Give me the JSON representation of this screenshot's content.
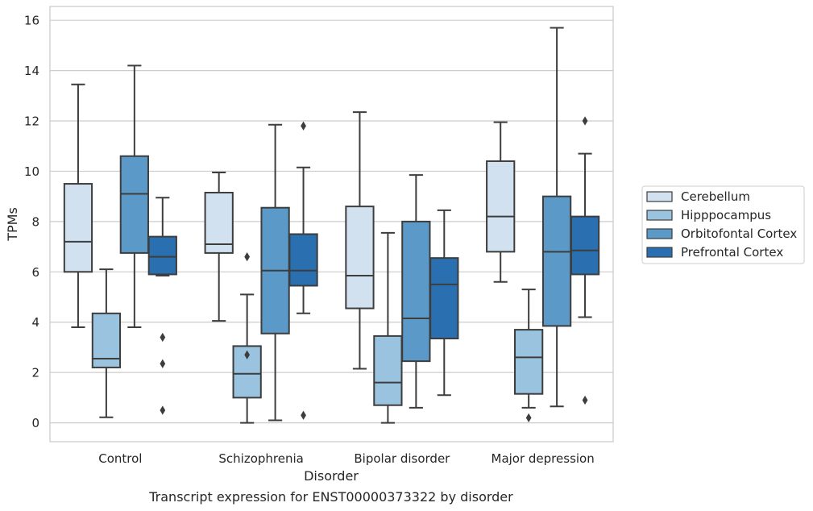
{
  "chart_data": {
    "type": "box",
    "title": "Transcript expression for ENST00000373322 by disorder",
    "xlabel": "Disorder",
    "ylabel": "TPMs",
    "ylim": [
      -0.75,
      16.55
    ],
    "yticks": [
      0,
      2,
      4,
      6,
      8,
      10,
      12,
      14,
      16
    ],
    "grid": "horizontal",
    "legend_position": "right",
    "categories": [
      "Control",
      "Schizophrenia",
      "Bipolar disorder",
      "Major depression"
    ],
    "series": [
      {
        "name": "Cerebellum",
        "color": "#d2e1f0",
        "boxes": [
          {
            "whislo": 3.8,
            "q1": 6.0,
            "median": 7.2,
            "q3": 9.5,
            "whishi": 13.45,
            "fliers": []
          },
          {
            "whislo": 4.05,
            "q1": 6.75,
            "median": 7.1,
            "q3": 9.15,
            "whishi": 9.95,
            "fliers": []
          },
          {
            "whislo": 2.15,
            "q1": 4.55,
            "median": 5.85,
            "q3": 8.6,
            "whishi": 12.35,
            "fliers": []
          },
          {
            "whislo": 5.6,
            "q1": 6.8,
            "median": 8.2,
            "q3": 10.4,
            "whishi": 11.95,
            "fliers": []
          }
        ]
      },
      {
        "name": "Hipppocampus",
        "color": "#9ac3df",
        "boxes": [
          {
            "whislo": 0.22,
            "q1": 2.2,
            "median": 2.55,
            "q3": 4.35,
            "whishi": 6.1,
            "fliers": []
          },
          {
            "whislo": 0.0,
            "q1": 1.0,
            "median": 1.95,
            "q3": 3.05,
            "whishi": 5.1,
            "fliers": [
              6.6,
              2.7
            ]
          },
          {
            "whislo": 0.0,
            "q1": 0.7,
            "median": 1.6,
            "q3": 3.45,
            "whishi": 7.55,
            "fliers": []
          },
          {
            "whislo": 0.6,
            "q1": 1.15,
            "median": 2.6,
            "q3": 3.7,
            "whishi": 5.3,
            "fliers": [
              0.2
            ]
          }
        ]
      },
      {
        "name": "Orbitofontal Cortex",
        "color": "#5b9ac8",
        "boxes": [
          {
            "whislo": 3.8,
            "q1": 6.75,
            "median": 9.1,
            "q3": 10.6,
            "whishi": 14.2,
            "fliers": []
          },
          {
            "whislo": 0.1,
            "q1": 3.55,
            "median": 6.05,
            "q3": 8.55,
            "whishi": 11.85,
            "fliers": []
          },
          {
            "whislo": 0.6,
            "q1": 2.45,
            "median": 4.15,
            "q3": 8.0,
            "whishi": 9.85,
            "fliers": []
          },
          {
            "whislo": 0.65,
            "q1": 3.85,
            "median": 6.8,
            "q3": 9.0,
            "whishi": 15.7,
            "fliers": []
          }
        ]
      },
      {
        "name": "Prefrontal Cortex",
        "color": "#2a6fb0",
        "boxes": [
          {
            "whislo": 5.85,
            "q1": 5.9,
            "median": 6.6,
            "q3": 7.4,
            "whishi": 8.95,
            "fliers": [
              3.4,
              2.35,
              0.5
            ]
          },
          {
            "whislo": 4.35,
            "q1": 5.45,
            "median": 6.05,
            "q3": 7.5,
            "whishi": 10.15,
            "fliers": [
              11.8,
              0.3
            ]
          },
          {
            "whislo": 1.1,
            "q1": 3.35,
            "median": 5.5,
            "q3": 6.55,
            "whishi": 8.45,
            "fliers": []
          },
          {
            "whislo": 4.2,
            "q1": 5.9,
            "median": 6.85,
            "q3": 8.2,
            "whishi": 10.7,
            "fliers": [
              12.0,
              0.9
            ]
          }
        ]
      }
    ]
  }
}
